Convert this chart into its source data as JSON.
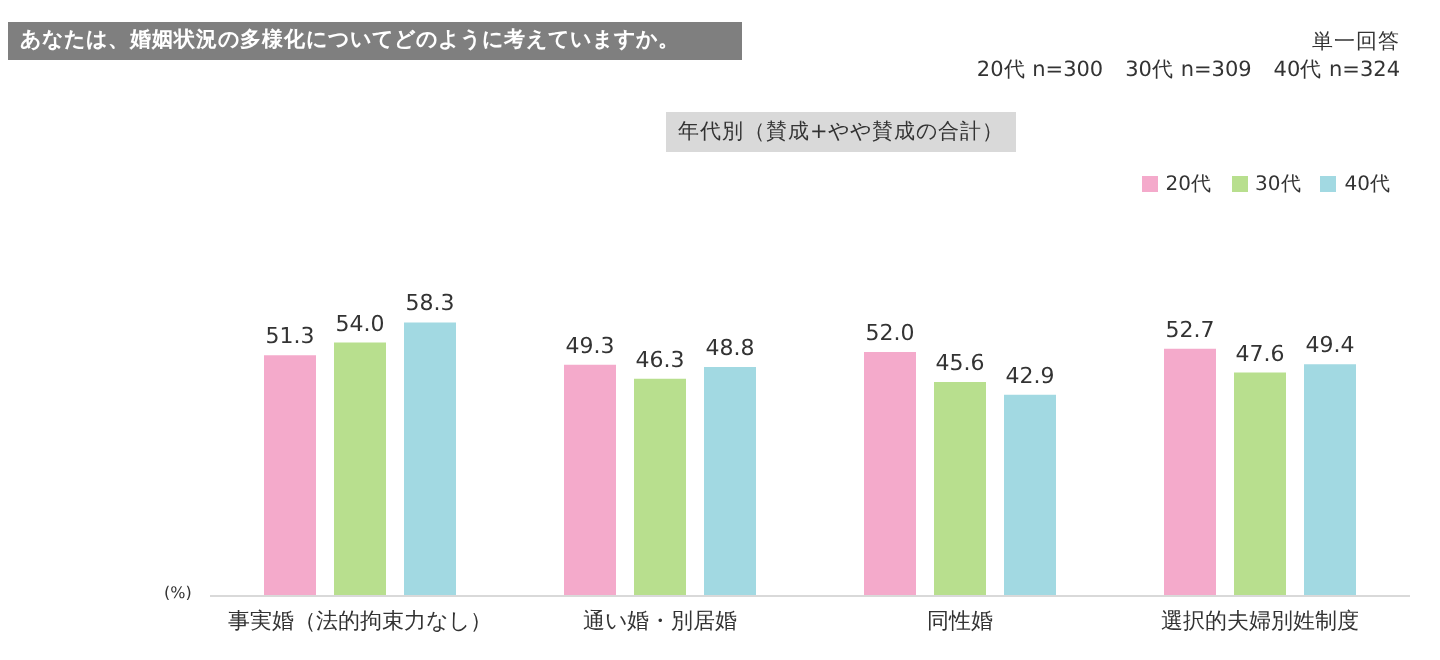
{
  "chart_data": {
    "type": "bar",
    "title": "あなたは、婚姻状況の多様化についてどのように考えていますか。",
    "subtitle": "年代別（賛成+やや賛成の合計）",
    "ylabel": "(%)",
    "annotations": [
      "単一回答",
      "20代 n=300　30代 n=309　40代 n=324"
    ],
    "categories": [
      "事実婚（法的拘束力なし）",
      "通い婚・別居婚",
      "同性婚",
      "選択的夫婦別姓制度"
    ],
    "series": [
      {
        "name": "20代",
        "color": "#f4aacb",
        "values": [
          51.3,
          49.3,
          52.0,
          52.7
        ],
        "value_labels": [
          "51.3",
          "49.3",
          "52.0",
          "52.7"
        ]
      },
      {
        "name": "30代",
        "color": "#b8df8e",
        "values": [
          54.0,
          46.3,
          45.6,
          47.6
        ],
        "value_labels": [
          "54.0",
          "46.3",
          "45.6",
          "47.6"
        ]
      },
      {
        "name": "40代",
        "color": "#a2d9e2",
        "values": [
          58.3,
          48.8,
          42.9,
          49.4
        ],
        "value_labels": [
          "58.3",
          "48.8",
          "42.9",
          "49.4"
        ]
      }
    ],
    "legend": "top right"
  }
}
